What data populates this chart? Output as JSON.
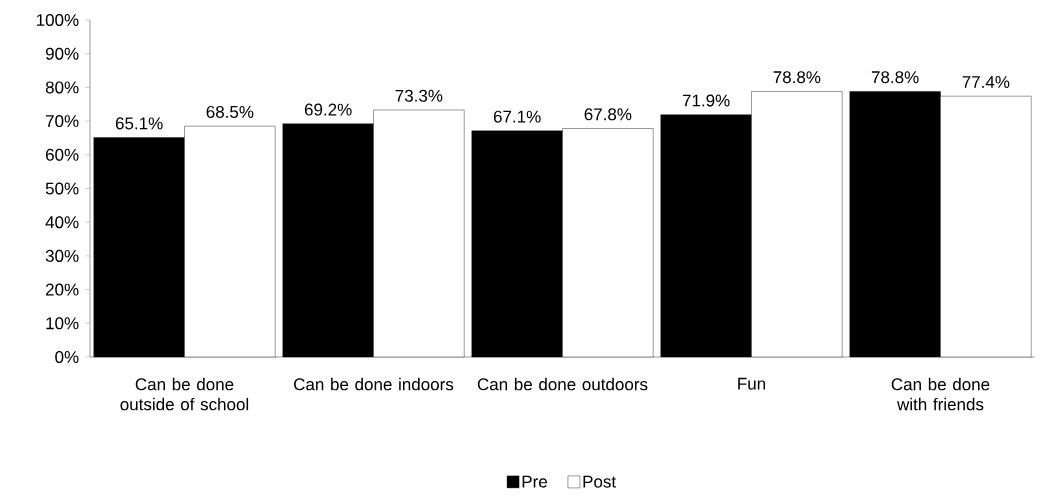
{
  "chart_data": {
    "type": "bar",
    "categories": [
      "Can be done outside of school",
      "Can be done indoors",
      "Can be done outdoors",
      "Fun",
      "Can be done with friends"
    ],
    "series": [
      {
        "name": "Pre",
        "color": "#000000",
        "values": [
          65.1,
          69.2,
          67.1,
          71.9,
          78.8
        ],
        "value_labels": [
          "65.1%",
          "69.2%",
          "67.1%",
          "71.9%",
          "78.8%"
        ]
      },
      {
        "name": "Post",
        "color": "#ffffff",
        "values": [
          68.5,
          73.3,
          67.8,
          78.8,
          77.4
        ],
        "value_labels": [
          "68.5%",
          "73.3%",
          "67.8%",
          "78.8%",
          "77.4%"
        ]
      }
    ],
    "ylim": [
      0,
      100
    ],
    "yticks": [
      {
        "value": 0,
        "label": "0%"
      },
      {
        "value": 10,
        "label": "10%"
      },
      {
        "value": 20,
        "label": "20%"
      },
      {
        "value": 30,
        "label": "30%"
      },
      {
        "value": 40,
        "label": "40%"
      },
      {
        "value": 50,
        "label": "50%"
      },
      {
        "value": 60,
        "label": "60%"
      },
      {
        "value": 70,
        "label": "70%"
      },
      {
        "value": 80,
        "label": "80%"
      },
      {
        "value": 90,
        "label": "90%"
      },
      {
        "value": 100,
        "label": "100%"
      }
    ],
    "grid": false,
    "legend": "bottom"
  }
}
